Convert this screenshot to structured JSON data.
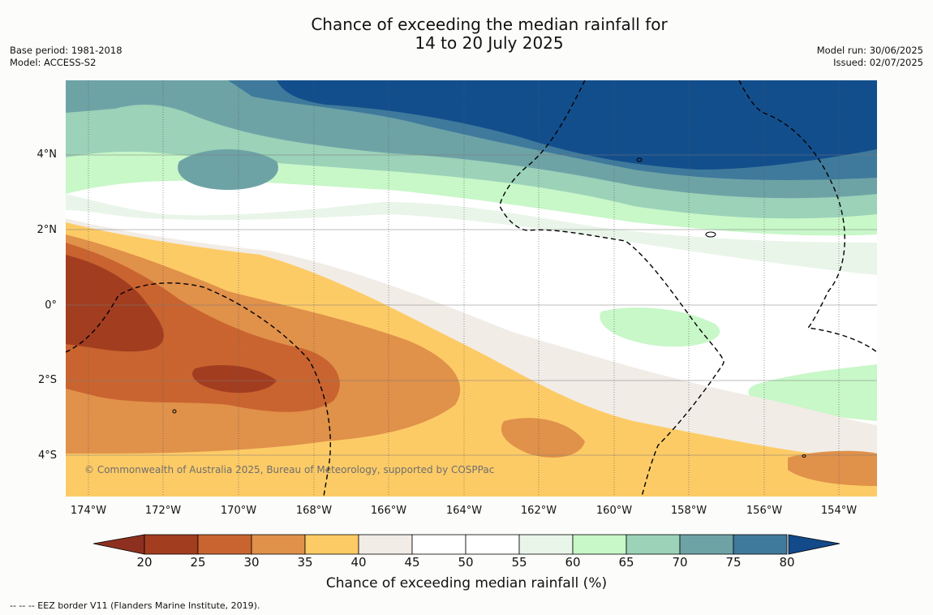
{
  "title": {
    "line1": "Chance of exceeding the median rainfall for",
    "line2": "14 to 20 July 2025"
  },
  "meta": {
    "base_period": "Base period: 1981-2018",
    "model": "Model: ACCESS-S2",
    "model_run": "Model run: 30/06/2025",
    "issued": "Issued: 02/07/2025"
  },
  "map": {
    "lat_labels": [
      "4°N",
      "2°N",
      "0°",
      "2°S",
      "4°S"
    ],
    "lon_labels": [
      "174°W",
      "172°W",
      "170°W",
      "168°W",
      "166°W",
      "164°W",
      "162°W",
      "160°W",
      "158°W",
      "156°W",
      "154°W"
    ],
    "copyright": "© Commonwealth of Australia 2025, Bureau of Meteorology, supported by COSPPac"
  },
  "colorbar": {
    "ticks": [
      "20",
      "25",
      "30",
      "35",
      "40",
      "45",
      "50",
      "55",
      "60",
      "65",
      "70",
      "75",
      "80"
    ],
    "colors": [
      "#a33d20",
      "#c96430",
      "#e0914a",
      "#fdcb66",
      "#f1ece6",
      "#ffffff",
      "#ffffff",
      "#e9f5e9",
      "#c8f7c8",
      "#9bd2b8",
      "#6ea3a6",
      "#3f7a9c",
      "#134e8c"
    ],
    "under_color": "#8e3020",
    "over_color": "#124a8a",
    "label": "Chance of exceeding median rainfall (%)"
  },
  "footer": "--  --  -- EEZ border V11 (Flanders Marine Institute, 2019)."
}
